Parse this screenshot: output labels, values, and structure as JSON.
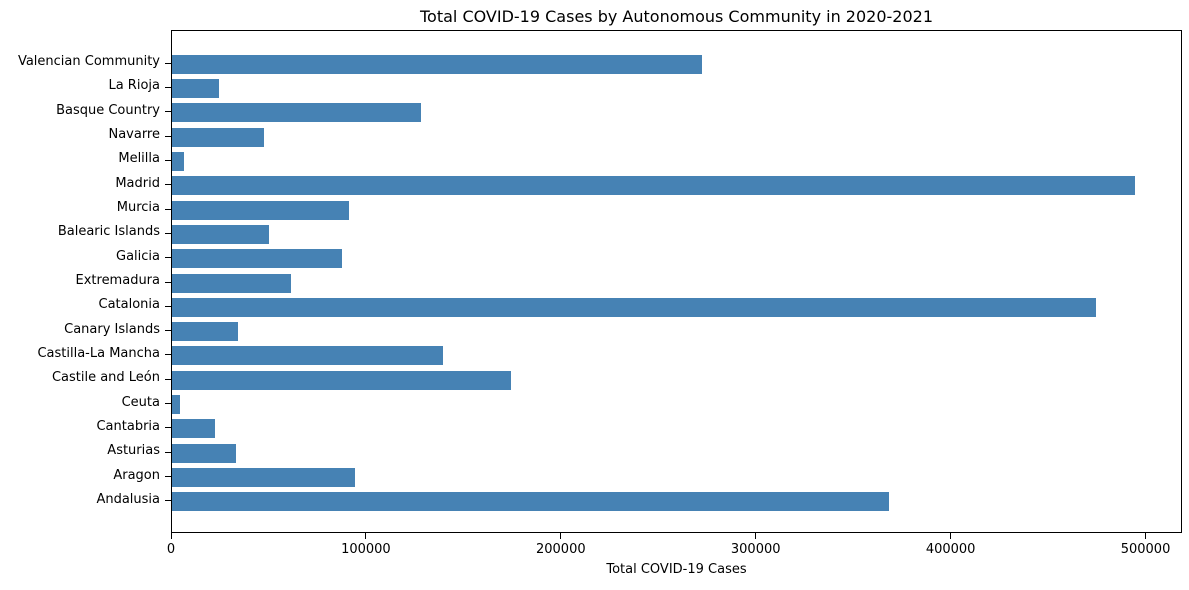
{
  "figure": {
    "background_color": "#ffffff",
    "text_color": "#000000",
    "spine_color": "#000000"
  },
  "chart_data": {
    "type": "bar",
    "orientation": "horizontal",
    "title": "Total COVID-19 Cases by Autonomous Community in 2020-2021",
    "xlabel": "Total COVID-19 Cases",
    "ylabel": "",
    "categories": [
      "Valencian Community",
      "La Rioja",
      "Basque Country",
      "Navarre",
      "Melilla",
      "Madrid",
      "Murcia",
      "Balearic Islands",
      "Galicia",
      "Extremadura",
      "Catalonia",
      "Canary Islands",
      "Castilla-La Mancha",
      "Castile and León",
      "Ceuta",
      "Cantabria",
      "Asturias",
      "Aragon",
      "Andalusia"
    ],
    "values": [
      272000,
      24000,
      128000,
      47000,
      6000,
      494000,
      91000,
      50000,
      87000,
      61000,
      474000,
      34000,
      139000,
      174000,
      4000,
      22000,
      33000,
      94000,
      368000
    ],
    "xticks": [
      0,
      100000,
      200000,
      300000,
      400000,
      500000
    ],
    "xlim": [
      0,
      518700
    ],
    "bar_color": "#4682B4",
    "grid": false,
    "legend": "none"
  }
}
